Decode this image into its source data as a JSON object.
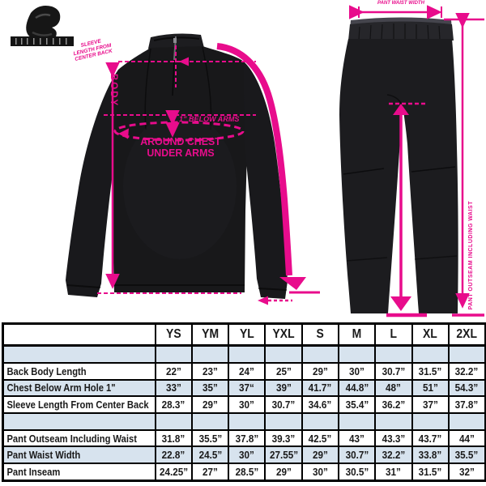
{
  "colors": {
    "annotation_pink": "#e80c8c",
    "table_shaded_row": "#d7e3ee",
    "garment_black": "#19191b"
  },
  "jacket": {
    "sleeve_note": [
      "SLEEVE",
      "LENGTH FROM",
      "CENTER BACK"
    ],
    "body_label": "BODY",
    "below_arms_label": "1” BELOW ARMS",
    "around_chest_line1": "AROUND CHEST",
    "around_chest_line2": "UNDER ARMS"
  },
  "pants": {
    "waist_label": "PANT WAIST WIDTH",
    "outseam_label": "PANT OUTSEAM INCLUDING WAIST"
  },
  "size_table": {
    "sizes": [
      "YS",
      "YM",
      "YL",
      "YXL",
      "S",
      "M",
      "L",
      "XL",
      "2XL"
    ],
    "rows": [
      {
        "label": "",
        "values": [
          "",
          "",
          "",
          "",
          "",
          "",
          "",
          "",
          ""
        ]
      },
      {
        "label": "Back Body Length",
        "values": [
          "22”",
          "23”",
          "24”",
          "25”",
          "29”",
          "30”",
          "30.7”",
          "31.5”",
          "32.2”"
        ]
      },
      {
        "label": "Chest Below Arm Hole 1\"",
        "values": [
          "33”",
          "35”",
          "37“",
          "39”",
          "41.7”",
          "44.8”",
          "48”",
          "51”",
          "54.3”"
        ]
      },
      {
        "label": "Sleeve Length From Center Back",
        "values": [
          "28.3”",
          "29”",
          "30”",
          "30.7”",
          "34.6”",
          "35.4”",
          "36.2”",
          "37”",
          "37.8”"
        ]
      },
      {
        "label": "",
        "values": [
          "",
          "",
          "",
          "",
          "",
          "",
          "",
          "",
          ""
        ]
      },
      {
        "label": "Pant Outseam Including Waist",
        "values": [
          "31.8”",
          "35.5”",
          "37.8”",
          "39.3”",
          "42.5”",
          "43”",
          "43.3”",
          "43.7”",
          "44”"
        ]
      },
      {
        "label": "Pant Waist Width",
        "values": [
          "22.8”",
          "24.5”",
          "30”",
          "27.55”",
          "29”",
          "30.7”",
          "32.2”",
          "33.8”",
          "35.5”"
        ]
      },
      {
        "label": "Pant Inseam",
        "values": [
          "24.25”",
          "27”",
          "28.5”",
          "29”",
          "30”",
          "30.5”",
          "31”",
          "31.5”",
          "32”"
        ]
      }
    ]
  }
}
